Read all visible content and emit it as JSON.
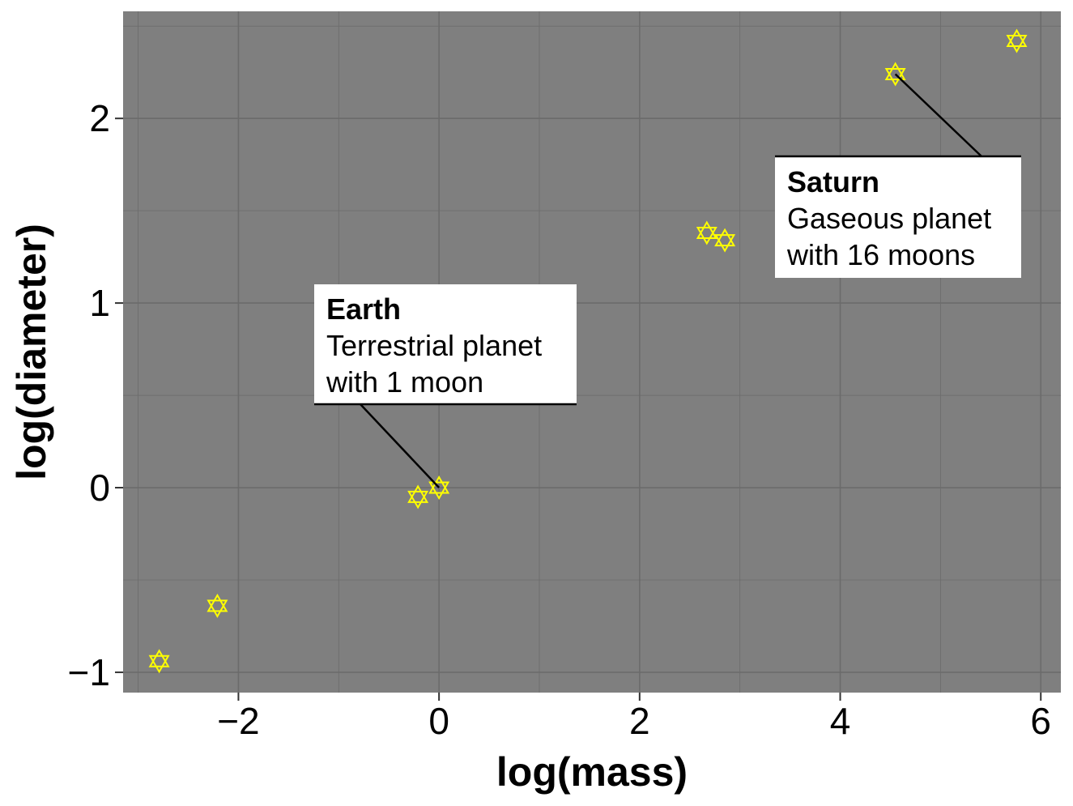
{
  "chart_data": {
    "type": "scatter",
    "title": "",
    "xlabel": "log(mass)",
    "ylabel": "log(diameter)",
    "xlim": [
      -3.15,
      6.2
    ],
    "ylim": [
      -1.11,
      2.58
    ],
    "x_ticks": [
      -2,
      0,
      2,
      4,
      6
    ],
    "x_tick_labels": [
      "−2",
      "0",
      "2",
      "4",
      "6"
    ],
    "y_ticks": [
      -1,
      0,
      1,
      2
    ],
    "y_tick_labels": [
      "−1",
      "0",
      "1",
      "2"
    ],
    "grid": true,
    "panel_color": "#7f7f7f",
    "grid_color": "#6b6b6b",
    "marker_color": "#ffff00",
    "marker": "hexagram",
    "x": [
      -2.79,
      -2.21,
      -0.21,
      0.0,
      2.67,
      2.85,
      4.55,
      5.76
    ],
    "y": [
      -0.94,
      -0.64,
      -0.05,
      0.0,
      1.38,
      1.34,
      2.24,
      2.42
    ],
    "annotations": [
      {
        "title": "Earth",
        "lines": [
          "Terrestrial planet",
          "with 1 moon"
        ],
        "target": [
          0.0,
          0.0
        ]
      },
      {
        "title": "Saturn",
        "lines": [
          "Gaseous planet",
          "with 16 moons"
        ],
        "target": [
          4.55,
          2.24
        ]
      }
    ]
  }
}
